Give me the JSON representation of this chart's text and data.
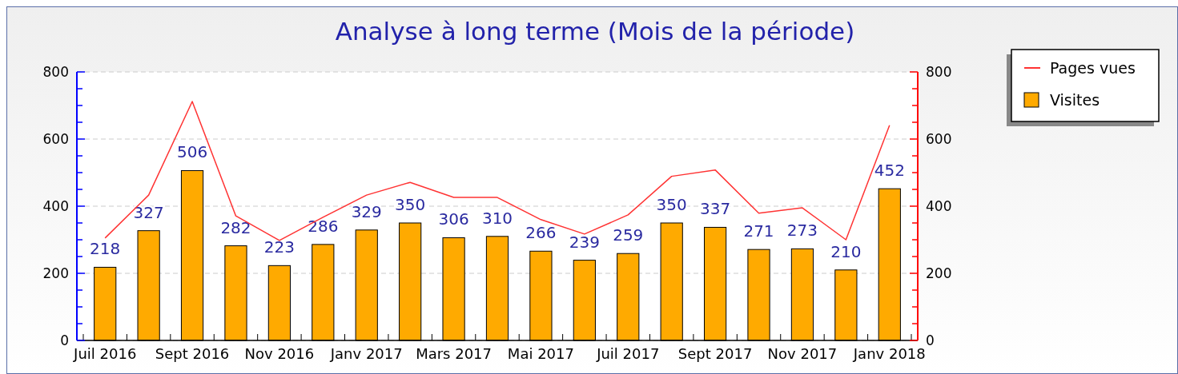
{
  "chart_data": {
    "type": "bar",
    "title": "Analyse à long terme (Mois de la période)",
    "categories": [
      "Juil 2016",
      null,
      "Sept 2016",
      null,
      "Nov 2016",
      null,
      "Janv 2017",
      null,
      "Mars 2017",
      null,
      "Mai 2017",
      null,
      "Juil 2017",
      null,
      "Sept 2017",
      null,
      "Nov 2017",
      null,
      "Janv 2018"
    ],
    "series": [
      {
        "name": "Pages vues",
        "type": "line",
        "axis": "y2",
        "color": "#ff3333",
        "values": [
          305,
          433,
          712,
          371,
          298,
          367,
          433,
          471,
          426,
          426,
          360,
          317,
          374,
          489,
          508,
          379,
          395,
          300,
          641
        ]
      },
      {
        "name": "Visites",
        "color": "#ffaa00",
        "values": [
          218,
          327,
          506,
          282,
          223,
          286,
          329,
          350,
          306,
          310,
          266,
          239,
          259,
          350,
          337,
          271,
          273,
          210,
          452
        ],
        "value_labels": [
          "218",
          "327",
          "506",
          "282",
          "223",
          "286",
          "329",
          "350",
          "306",
          "310",
          "266",
          "239",
          "259",
          "350",
          "337",
          "271",
          "273",
          "210",
          "452"
        ]
      }
    ],
    "ylim": [
      0,
      800
    ],
    "yticks": [
      0,
      {
        "value": 50,
        "label": null
      },
      {
        "value": 100,
        "label": null
      },
      {
        "value": 150,
        "label": null
      },
      200,
      {
        "value": 250,
        "label": null
      },
      {
        "value": 300,
        "label": null
      },
      {
        "value": 350,
        "label": null
      },
      400,
      {
        "value": 450,
        "label": null
      },
      {
        "value": 500,
        "label": null
      },
      {
        "value": 550,
        "label": null
      },
      600,
      {
        "value": 650,
        "label": null
      },
      {
        "value": 700,
        "label": null
      },
      {
        "value": 750,
        "label": null
      },
      800
    ],
    "y2lim": [
      0,
      800
    ],
    "y2ticks": [
      0,
      {
        "value": 50,
        "label": null
      },
      {
        "value": 100,
        "label": null
      },
      {
        "value": 150,
        "label": null
      },
      200,
      {
        "value": 250,
        "label": null
      },
      {
        "value": 300,
        "label": null
      },
      {
        "value": 350,
        "label": null
      },
      400,
      {
        "value": 450,
        "label": null
      },
      {
        "value": 500,
        "label": null
      },
      {
        "value": 550,
        "label": null
      },
      600,
      {
        "value": 650,
        "label": null
      },
      {
        "value": 700,
        "label": null
      },
      {
        "value": 750,
        "label": null
      },
      800
    ],
    "grid": "y",
    "legend": "top right"
  }
}
